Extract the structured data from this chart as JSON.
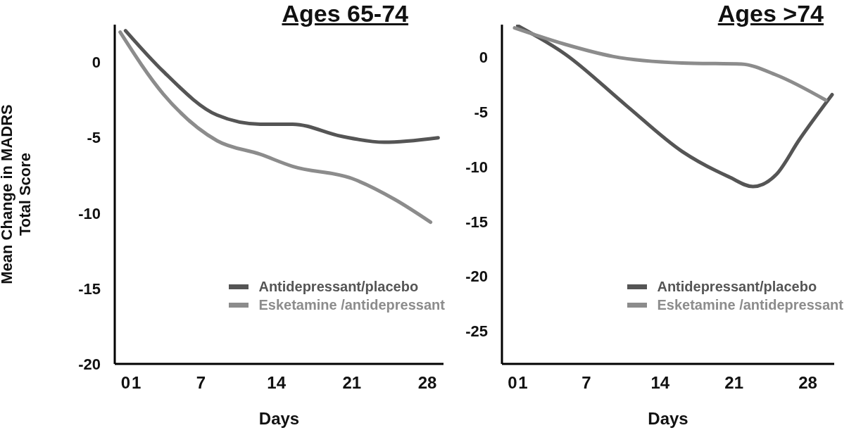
{
  "chart_data": [
    {
      "type": "line",
      "title": "Ages 65-74",
      "xlabel": "Days",
      "ylabel": "Mean Change in MADRS\nTotal Score",
      "xlim": [
        -1,
        29.5
      ],
      "xticks": [
        0,
        1,
        7,
        14,
        21,
        28
      ],
      "ylim": [
        -20,
        2.5
      ],
      "yticks": [
        0,
        -5,
        -10,
        -15,
        -20
      ],
      "legend": "bottom right",
      "marker": "none",
      "line_style": "solid",
      "grid": false,
      "series": [
        {
          "name": "Antidepressant/placebo",
          "color": "#555555",
          "x": [
            0,
            3.5,
            8.5,
            12.5,
            15.5,
            20,
            24,
            29
          ],
          "values": [
            2.1,
            -0.6,
            -3.5,
            -4.1,
            -4.1,
            -4.9,
            -5.3,
            -5.0
          ]
        },
        {
          "name": "Esketamine /antidepressant",
          "color": "#8c8c8c",
          "x": [
            -0.5,
            3.5,
            8.5,
            12.5,
            15.5,
            21,
            25,
            28.3
          ],
          "values": [
            2.0,
            -2.1,
            -5.2,
            -6.1,
            -6.9,
            -7.7,
            -9.1,
            -10.6
          ]
        }
      ]
    },
    {
      "type": "line",
      "title": "Ages >74",
      "xlabel": "Days",
      "xlim": [
        -1,
        30.5
      ],
      "xticks": [
        0,
        1,
        7,
        14,
        21,
        28
      ],
      "ylim": [
        -28,
        3
      ],
      "yticks": [
        0,
        -5,
        -10,
        -15,
        -20,
        -25
      ],
      "legend": "bottom right",
      "marker": "none",
      "line_style": "solid",
      "grid": false,
      "series": [
        {
          "name": "Antidepressant/placebo",
          "color": "#555555",
          "x": [
            0.5,
            5,
            10.8,
            16.1,
            20.5,
            22.8,
            25,
            27.2,
            30.3
          ],
          "values": [
            2.9,
            0.3,
            -4.4,
            -8.6,
            -10.9,
            -11.8,
            -10.7,
            -7.5,
            -3.4
          ]
        },
        {
          "name": "Esketamine /antidepressant",
          "color": "#8c8c8c",
          "x": [
            0.2,
            5,
            9.5,
            16.1,
            21.7,
            25,
            29.7
          ],
          "values": [
            2.7,
            1.2,
            0.1,
            -0.5,
            -0.6,
            -1.6,
            -3.9
          ]
        }
      ]
    }
  ]
}
